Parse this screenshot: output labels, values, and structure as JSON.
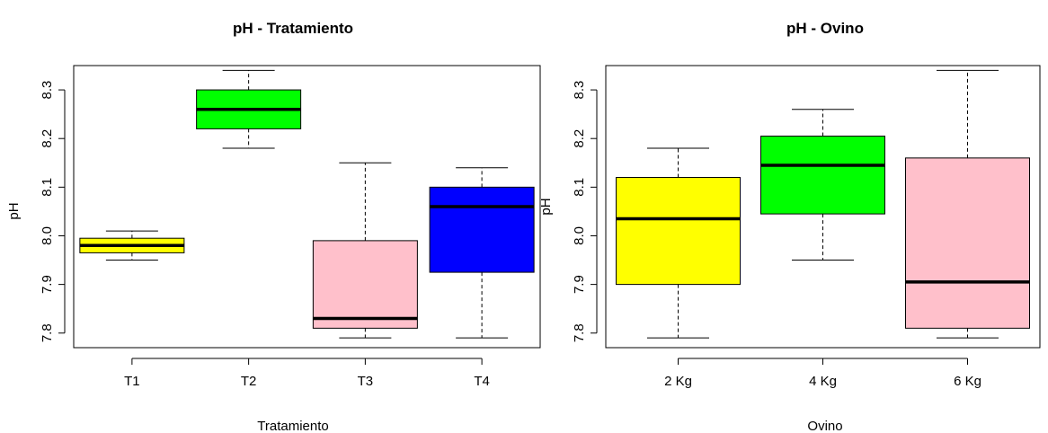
{
  "chart_data": [
    {
      "type": "boxplot",
      "title": "pH - Tratamiento",
      "xlabel": "Tratamiento",
      "ylabel": "pH",
      "ylim": [
        7.77,
        8.35
      ],
      "yticks": [
        "7.8",
        "7.9",
        "8.0",
        "8.1",
        "8.2",
        "8.3"
      ],
      "categories": [
        "T1",
        "T2",
        "T3",
        "T4"
      ],
      "boxes": [
        {
          "category": "T1",
          "color": "#FFFF00",
          "min": 7.95,
          "q1": 7.965,
          "median": 7.98,
          "q3": 7.995,
          "max": 8.01
        },
        {
          "category": "T2",
          "color": "#00FF00",
          "min": 8.18,
          "q1": 8.22,
          "median": 8.26,
          "q3": 8.3,
          "max": 8.34
        },
        {
          "category": "T3",
          "color": "#FFC0CB",
          "min": 7.79,
          "q1": 7.81,
          "median": 7.83,
          "q3": 7.99,
          "max": 8.15
        },
        {
          "category": "T4",
          "color": "#0000FF",
          "min": 7.79,
          "q1": 7.925,
          "median": 8.06,
          "q3": 8.1,
          "max": 8.14
        }
      ]
    },
    {
      "type": "boxplot",
      "title": "pH - Ovino",
      "xlabel": "Ovino",
      "ylabel": "pH",
      "ylim": [
        7.77,
        8.35
      ],
      "yticks": [
        "7.8",
        "7.9",
        "8.0",
        "8.1",
        "8.2",
        "8.3"
      ],
      "categories": [
        "2 Kg",
        "4 Kg",
        "6 Kg"
      ],
      "boxes": [
        {
          "category": "2 Kg",
          "color": "#FFFF00",
          "min": 7.79,
          "q1": 7.9,
          "median": 8.035,
          "q3": 8.12,
          "max": 8.18
        },
        {
          "category": "4 Kg",
          "color": "#00FF00",
          "min": 7.95,
          "q1": 8.045,
          "median": 8.145,
          "q3": 8.205,
          "max": 8.26
        },
        {
          "category": "6 Kg",
          "color": "#FFC0CB",
          "min": 7.79,
          "q1": 7.81,
          "median": 7.905,
          "q3": 8.16,
          "max": 8.34
        }
      ]
    }
  ]
}
